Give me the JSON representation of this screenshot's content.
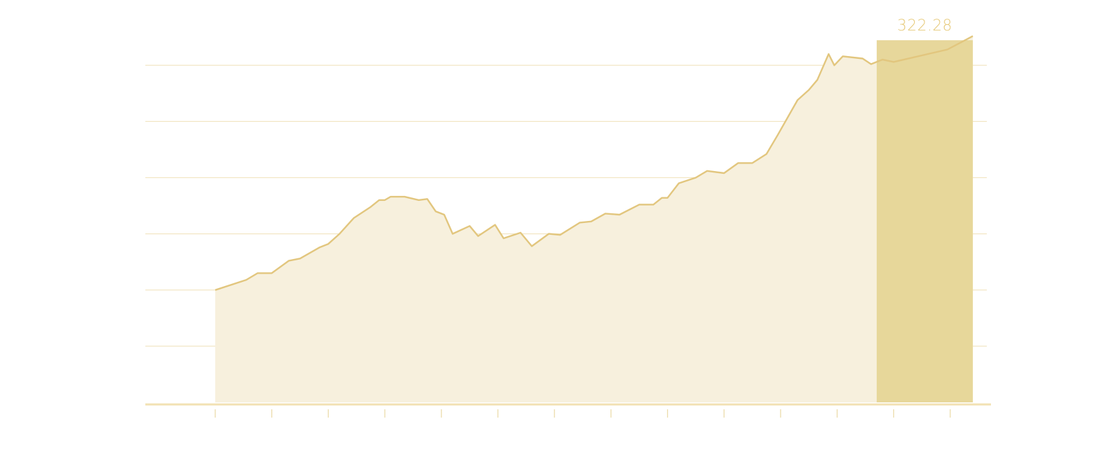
{
  "chart_data": {
    "type": "area",
    "grid": true,
    "ylim": [
      0,
      360
    ],
    "gridlines": [
      50,
      100,
      150,
      200,
      250,
      300
    ],
    "x_tick_count": 14,
    "highlight": {
      "x_range": [
        11.7,
        13.4
      ],
      "value": 322.28,
      "label": "322.28"
    },
    "series": [
      {
        "x": [
          0,
          0.55,
          0.75,
          1.0,
          1.3,
          1.5,
          1.85,
          2.0,
          2.2,
          2.45,
          2.75,
          2.9,
          3.0,
          3.1,
          3.35,
          3.6,
          3.75,
          3.9,
          4.05,
          4.2,
          4.5,
          4.65,
          4.95,
          5.1,
          5.4,
          5.6,
          5.9,
          6.1,
          6.45,
          6.65,
          6.9,
          7.15,
          7.5,
          7.75,
          7.9,
          8.0,
          8.2,
          8.5,
          8.7,
          9.0,
          9.25,
          9.5,
          9.75,
          9.95,
          10.3,
          10.5,
          10.65,
          10.85,
          10.95,
          11.1,
          11.45,
          11.6,
          11.8,
          12.0,
          12.95,
          13.4
        ],
        "values": [
          100,
          109,
          115,
          115,
          126,
          128,
          138,
          141,
          150,
          164,
          174,
          180,
          180,
          183,
          183,
          180,
          181,
          170,
          167,
          150,
          157,
          148,
          158,
          146,
          151,
          139,
          150,
          149,
          160,
          161,
          168,
          167,
          176,
          176,
          182,
          182,
          195,
          200,
          206,
          204,
          213,
          213,
          221,
          238,
          269,
          278,
          287,
          310,
          300,
          308,
          306,
          301,
          305,
          303,
          314,
          326
        ]
      }
    ]
  },
  "colors": {
    "accent": "#e2c67e",
    "area_fill": "#f7f0dd",
    "highlight_fill": "#e6d596",
    "label": "#e6c978",
    "grid": "#f2e6c4"
  }
}
